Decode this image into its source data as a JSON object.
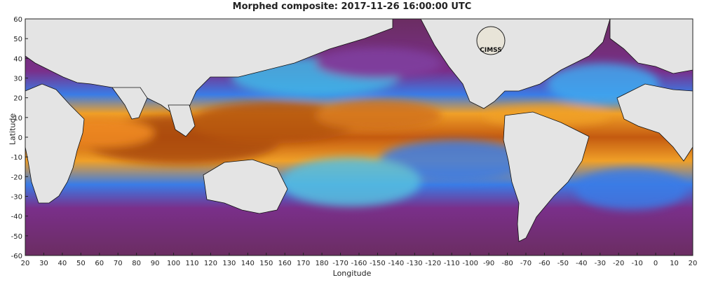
{
  "title": "Morphed composite: 2017-11-26 16:00:00 UTC",
  "axes": {
    "xlabel": "Longitude",
    "ylabel": "Latitude",
    "x_ticks": [
      "20",
      "30",
      "40",
      "50",
      "60",
      "70",
      "80",
      "90",
      "100",
      "110",
      "120",
      "130",
      "140",
      "150",
      "160",
      "170",
      "180",
      "-170",
      "-160",
      "-150",
      "-140",
      "-130",
      "-120",
      "-110",
      "-100",
      "-90",
      "-80",
      "-70",
      "-60",
      "-50",
      "-40",
      "-30",
      "-20",
      "-10",
      "0",
      "10",
      "20"
    ],
    "y_ticks": [
      "60",
      "50",
      "40",
      "30",
      "20",
      "10",
      "0",
      "-10",
      "-20",
      "-30",
      "-40",
      "-50",
      "-60"
    ]
  },
  "logo_text": "CIMSS",
  "colors": {
    "land": "#e4e4e4",
    "dry": "#7a2d6e",
    "moderate": "#3a7fe8",
    "moist": "#ee9a20",
    "very_moist": "#9a3a08"
  }
}
